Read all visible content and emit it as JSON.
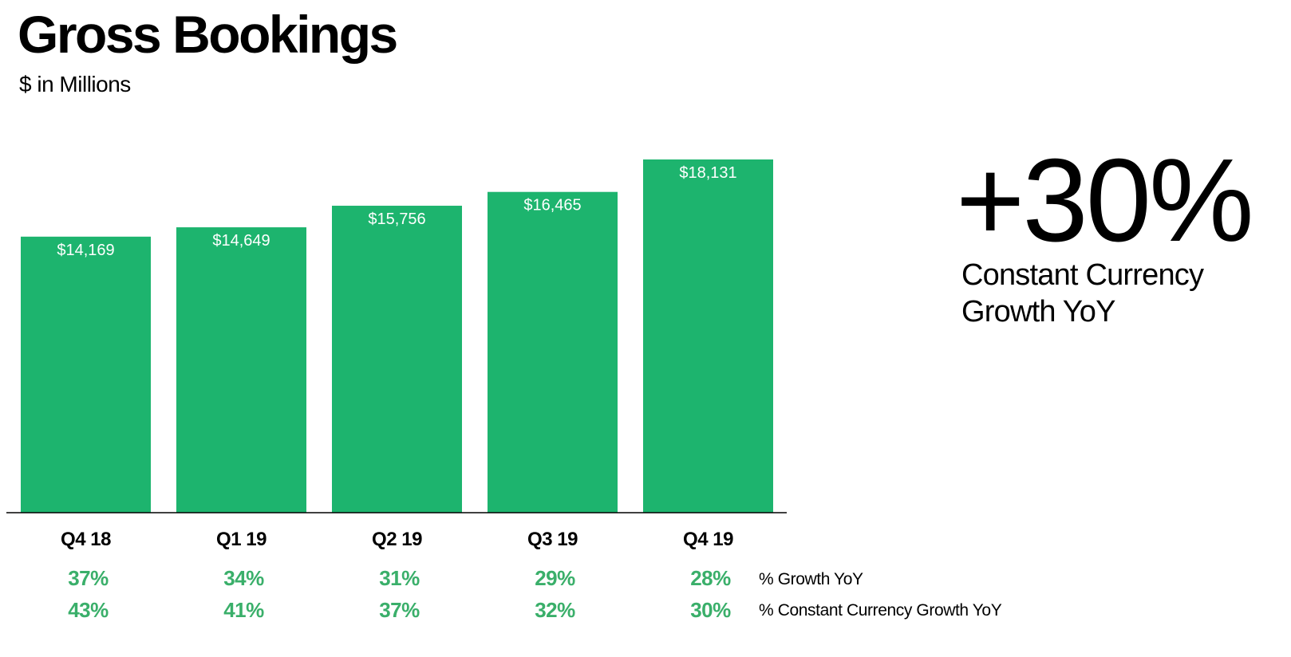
{
  "header": {
    "title": "Gross Bookings",
    "subtitle": "$ in Millions"
  },
  "highlight": {
    "value": "+30%",
    "caption_line1": "Constant Currency",
    "caption_line2": "Growth YoY"
  },
  "colors": {
    "bar": "#1db46e",
    "growth_text": "#3aaf6a",
    "baseline": "#000000"
  },
  "chart_data": {
    "type": "bar",
    "categories": [
      "Q4 18",
      "Q1 19",
      "Q2 19",
      "Q3 19",
      "Q4 19"
    ],
    "values": [
      14169,
      14649,
      15756,
      16465,
      18131
    ],
    "value_labels": [
      "$14,169",
      "$14,649",
      "$15,756",
      "$16,465",
      "$18,131"
    ],
    "title": "Gross Bookings",
    "subtitle": "$ in Millions",
    "grid": false,
    "rows": [
      {
        "label": "% Growth YoY",
        "values": [
          "37%",
          "34%",
          "31%",
          "29%",
          "28%"
        ]
      },
      {
        "label": "% Constant Currency Growth YoY",
        "values": [
          "43%",
          "41%",
          "37%",
          "32%",
          "30%"
        ]
      }
    ]
  }
}
